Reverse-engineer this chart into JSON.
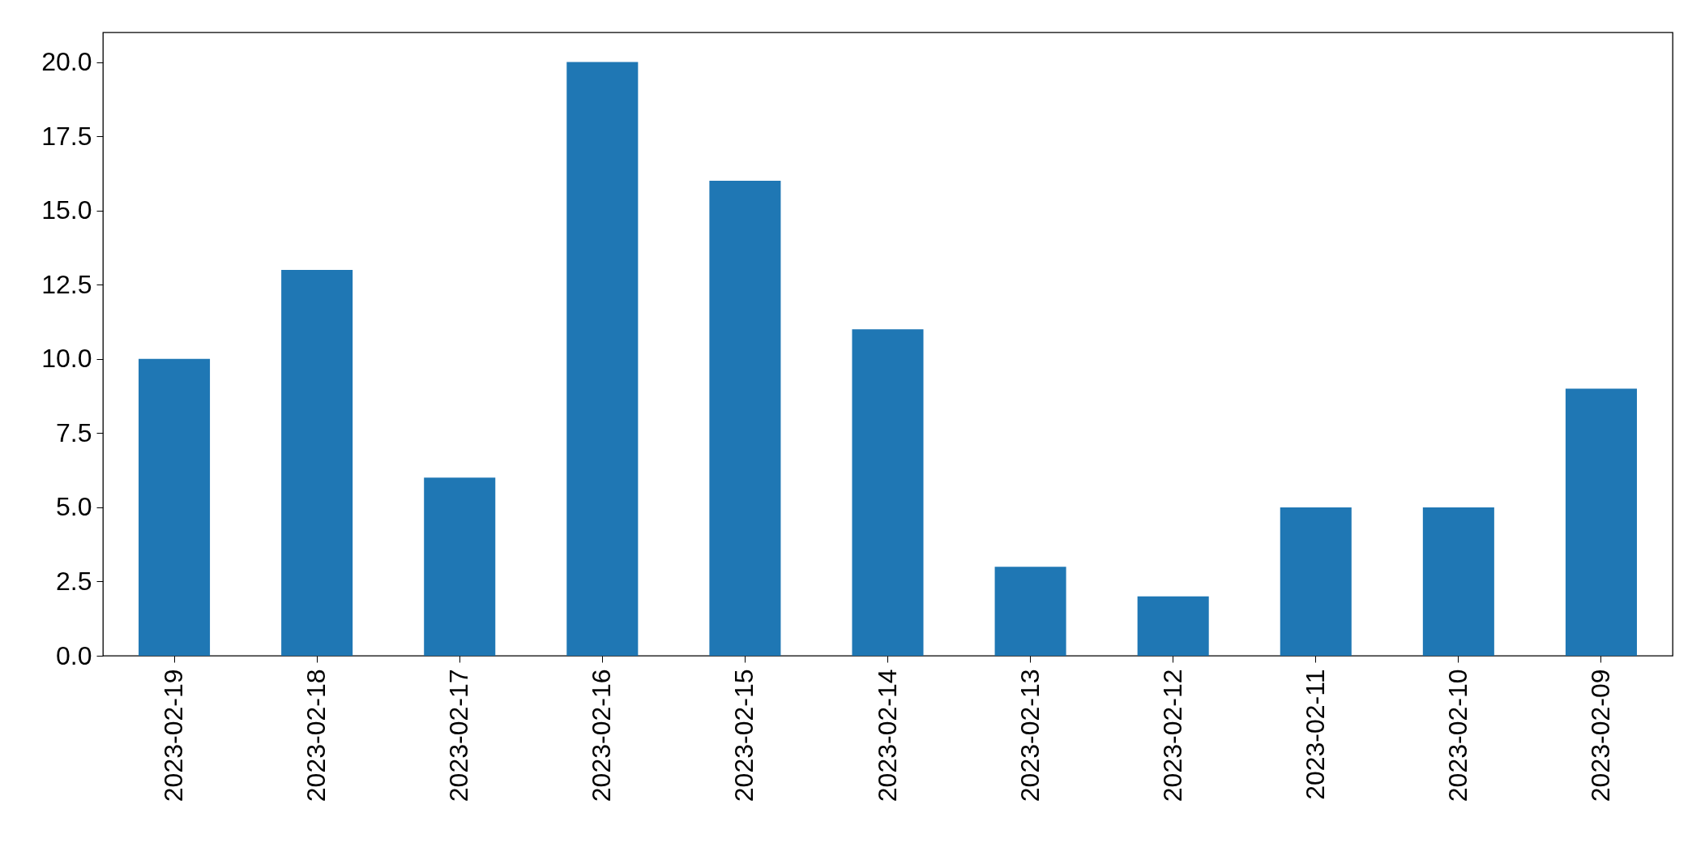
{
  "chart_data": {
    "type": "bar",
    "categories": [
      "2023-02-19",
      "2023-02-18",
      "2023-02-17",
      "2023-02-16",
      "2023-02-15",
      "2023-02-14",
      "2023-02-13",
      "2023-02-12",
      "2023-02-11",
      "2023-02-10",
      "2023-02-09"
    ],
    "values": [
      10,
      13,
      6,
      20,
      16,
      11,
      3,
      2,
      5,
      5,
      9
    ],
    "color": "#1f77b4",
    "ylim": [
      0,
      21
    ],
    "yticks": [
      {
        "value": 0,
        "label": "0.0"
      },
      2.5,
      {
        "value": 5,
        "label": "5.0"
      },
      7.5,
      {
        "value": 10,
        "label": "10.0"
      },
      12.5,
      {
        "value": 15,
        "label": "15.0"
      },
      17.5,
      {
        "value": 20,
        "label": "20.0"
      }
    ],
    "grid": false
  }
}
